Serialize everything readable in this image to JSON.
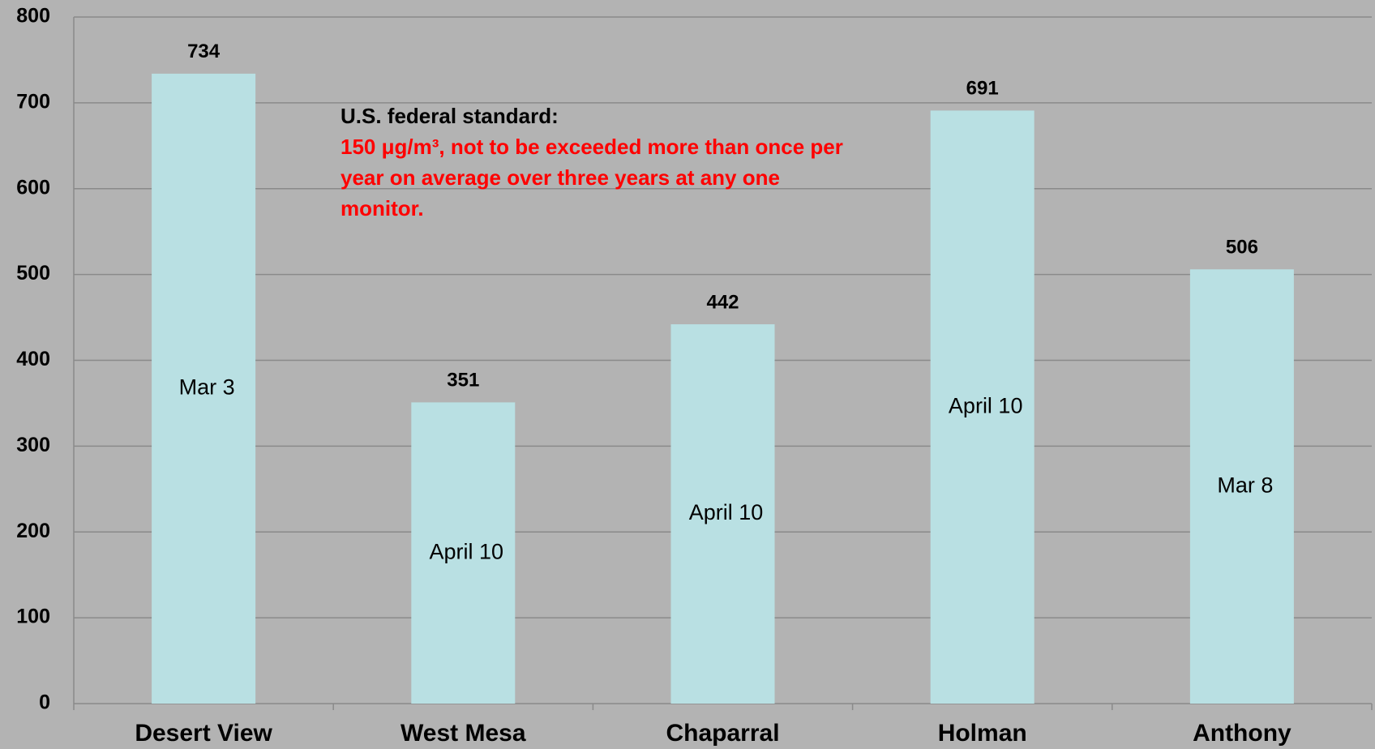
{
  "chart_data": {
    "type": "bar",
    "categories": [
      "Desert View",
      "West Mesa",
      "Chaparral",
      "Holman",
      "Anthony"
    ],
    "values": [
      734,
      351,
      442,
      691,
      506
    ],
    "date_labels": [
      "Mar 3",
      "April 10",
      "April 10",
      "April 10",
      "Mar 8"
    ],
    "color": "#b9e0e3",
    "ylim": [
      0,
      800
    ],
    "yticks": [
      0,
      100,
      200,
      300,
      400,
      500,
      600,
      700,
      800
    ],
    "grid": true,
    "annotation": {
      "title": "U.S. federal standard:",
      "text": "150 μg/m³, not to be exceeded more than once per year on average over three years at any one monitor."
    }
  }
}
